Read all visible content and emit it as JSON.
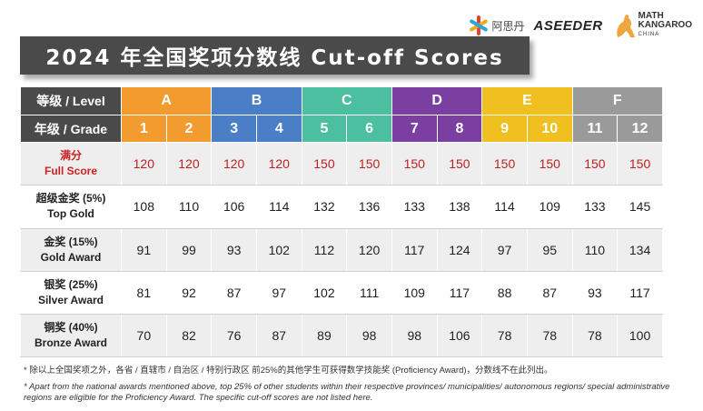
{
  "title": "2024 年全国奖项分数线 Cut-off Scores",
  "logos": {
    "aseeder_cn": "阿思丹",
    "aseeder_en": "ASEEDER",
    "kangaroo_1": "MATH",
    "kangaroo_2": "KANGAROO",
    "kangaroo_3": "CHINA"
  },
  "table": {
    "level_header": "等级 / Level",
    "grade_header": "年级 / Grade",
    "levels": [
      "A",
      "B",
      "C",
      "D",
      "E",
      "F"
    ],
    "level_colors": [
      "#F29B2E",
      "#4A7FC8",
      "#4CBFA0",
      "#7A3FA0",
      "#EFC01F",
      "#9A9A9A"
    ],
    "grades": [
      "1",
      "2",
      "3",
      "4",
      "5",
      "6",
      "7",
      "8",
      "9",
      "10",
      "11",
      "12"
    ],
    "rows": [
      {
        "label_cn": "满分",
        "label_en": "Full Score",
        "values": [
          "120",
          "120",
          "120",
          "120",
          "150",
          "150",
          "150",
          "150",
          "150",
          "150",
          "150",
          "150"
        ]
      },
      {
        "label_cn": "超级金奖 (5%)",
        "label_en": "Top Gold",
        "values": [
          "108",
          "110",
          "106",
          "114",
          "132",
          "136",
          "133",
          "138",
          "114",
          "109",
          "133",
          "145"
        ]
      },
      {
        "label_cn": "金奖 (15%)",
        "label_en": "Gold Award",
        "values": [
          "91",
          "99",
          "93",
          "102",
          "112",
          "120",
          "117",
          "124",
          "97",
          "95",
          "110",
          "134"
        ]
      },
      {
        "label_cn": "银奖 (25%)",
        "label_en": "Silver Award",
        "values": [
          "81",
          "92",
          "87",
          "97",
          "102",
          "111",
          "109",
          "117",
          "88",
          "87",
          "93",
          "117"
        ]
      },
      {
        "label_cn": "铜奖 (40%)",
        "label_en": "Bronze Award",
        "values": [
          "70",
          "82",
          "76",
          "87",
          "89",
          "98",
          "98",
          "106",
          "78",
          "78",
          "78",
          "100"
        ]
      }
    ]
  },
  "notes": {
    "note_cn": "* 除以上全国奖项之外，各省 / 直辖市 / 自治区 / 特别行政区 前25%的其他学生可获得数学技能奖 (Proficiency Award)，分数线不在此列出。",
    "note_en": "* Apart from the national awards mentioned above, top 25% of other students within their respective provinces/ municipalities/ autonomous regions/ special administrative regions are eligible for the Proficiency Award. The specific cut-off scores are not listed here."
  }
}
